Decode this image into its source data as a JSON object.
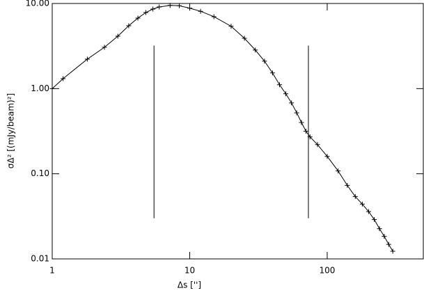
{
  "chart_data": {
    "type": "line",
    "marker": "+",
    "color": "#000000",
    "xlabel": "Δs ['']",
    "ylabel": "σΔ² [(mJy/beam)²]",
    "xscale": "log",
    "yscale": "log",
    "xlim": [
      1,
      500
    ],
    "ylim": [
      0.01,
      10
    ],
    "xticks": [
      1,
      10,
      100
    ],
    "yticks": [
      {
        "value": 10,
        "label": "10.00"
      },
      {
        "value": 1,
        "label": "1.00"
      },
      {
        "value": 0.1,
        "label": "0.10"
      },
      {
        "value": 0.01,
        "label": "0.01"
      }
    ],
    "x": [
      1,
      1.2,
      1.8,
      2.4,
      3.0,
      3.6,
      4.2,
      4.8,
      5.4,
      6.0,
      7.2,
      8.4,
      10,
      12,
      15,
      20,
      25,
      30,
      35,
      40,
      45,
      50,
      55,
      60,
      65,
      70,
      75,
      85,
      100,
      120,
      140,
      160,
      180,
      200,
      220,
      240,
      260,
      280,
      300
    ],
    "values": [
      1.0,
      1.31,
      2.22,
      3.06,
      4.13,
      5.48,
      6.74,
      7.83,
      8.6,
      9.1,
      9.5,
      9.4,
      8.8,
      8.1,
      7.0,
      5.4,
      3.9,
      2.84,
      2.1,
      1.53,
      1.11,
      0.87,
      0.68,
      0.52,
      0.4,
      0.316,
      0.271,
      0.22,
      0.16,
      0.108,
      0.073,
      0.054,
      0.044,
      0.036,
      0.029,
      0.0226,
      0.0184,
      0.0148,
      0.0123
    ],
    "vlines": [
      {
        "x": 5.5,
        "ymin": 0.03,
        "ymax": 3.2
      },
      {
        "x": 73,
        "ymin": 0.03,
        "ymax": 3.2
      }
    ]
  }
}
